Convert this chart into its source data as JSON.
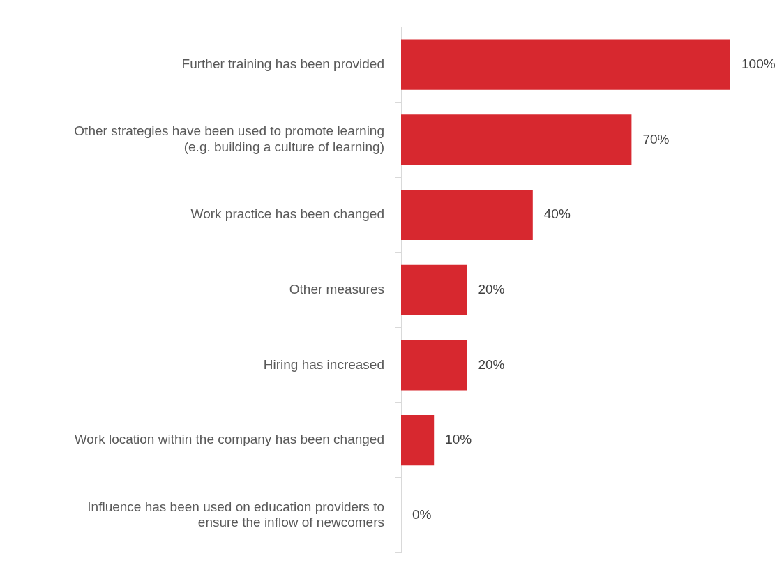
{
  "chart_data": {
    "type": "bar",
    "orientation": "horizontal",
    "color": "#d7282f",
    "categories": [
      "Further training has been provided",
      "Other strategies have been used to promote learning (e.g. building a culture of learning)",
      "Work practice has been changed",
      "Other measures",
      "Hiring has increased",
      "Work location within the company has been changed",
      "Influence has been used on education providers to ensure the inflow of newcomers"
    ],
    "values": [
      100,
      70,
      40,
      20,
      20,
      10,
      0
    ],
    "value_labels": [
      "100%",
      "70%",
      "40%",
      "20%",
      "20%",
      "10%",
      "0%"
    ],
    "legend": false
  }
}
